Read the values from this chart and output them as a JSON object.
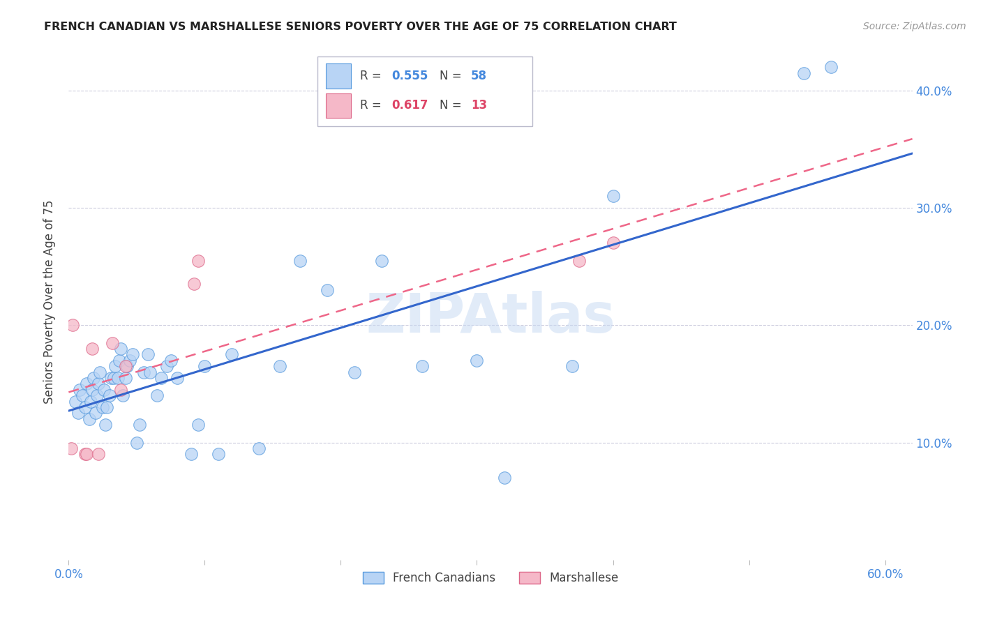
{
  "title": "FRENCH CANADIAN VS MARSHALLESE SENIORS POVERTY OVER THE AGE OF 75 CORRELATION CHART",
  "source": "Source: ZipAtlas.com",
  "ylabel": "Seniors Poverty Over the Age of 75",
  "xlim": [
    0.0,
    0.62
  ],
  "ylim": [
    0.0,
    0.44
  ],
  "xticks": [
    0.0,
    0.1,
    0.2,
    0.3,
    0.4,
    0.5,
    0.6
  ],
  "xticklabels": [
    "0.0%",
    "",
    "",
    "",
    "",
    "",
    "60.0%"
  ],
  "yticks": [
    0.1,
    0.2,
    0.3,
    0.4
  ],
  "yticklabels": [
    "10.0%",
    "20.0%",
    "30.0%",
    "40.0%"
  ],
  "blue_r": "0.555",
  "blue_n": "58",
  "pink_r": "0.617",
  "pink_n": "13",
  "blue_fill": "#b8d4f5",
  "pink_fill": "#f5b8c8",
  "blue_edge": "#5599dd",
  "pink_edge": "#dd6688",
  "line_blue_color": "#3366cc",
  "line_pink_color": "#ee6688",
  "watermark": "ZIPAtlas",
  "french_canadians_x": [
    0.005,
    0.007,
    0.008,
    0.01,
    0.012,
    0.013,
    0.015,
    0.016,
    0.017,
    0.018,
    0.02,
    0.021,
    0.022,
    0.023,
    0.025,
    0.026,
    0.027,
    0.028,
    0.03,
    0.031,
    0.033,
    0.034,
    0.036,
    0.037,
    0.038,
    0.04,
    0.042,
    0.043,
    0.045,
    0.047,
    0.05,
    0.052,
    0.055,
    0.058,
    0.06,
    0.065,
    0.068,
    0.072,
    0.075,
    0.08,
    0.09,
    0.095,
    0.1,
    0.11,
    0.12,
    0.14,
    0.155,
    0.17,
    0.19,
    0.21,
    0.23,
    0.26,
    0.3,
    0.32,
    0.37,
    0.4,
    0.54,
    0.56
  ],
  "french_canadians_y": [
    0.135,
    0.125,
    0.145,
    0.14,
    0.13,
    0.15,
    0.12,
    0.135,
    0.145,
    0.155,
    0.125,
    0.14,
    0.15,
    0.16,
    0.13,
    0.145,
    0.115,
    0.13,
    0.14,
    0.155,
    0.155,
    0.165,
    0.155,
    0.17,
    0.18,
    0.14,
    0.155,
    0.165,
    0.17,
    0.175,
    0.1,
    0.115,
    0.16,
    0.175,
    0.16,
    0.14,
    0.155,
    0.165,
    0.17,
    0.155,
    0.09,
    0.115,
    0.165,
    0.09,
    0.175,
    0.095,
    0.165,
    0.255,
    0.23,
    0.16,
    0.255,
    0.165,
    0.17,
    0.07,
    0.165,
    0.31,
    0.415,
    0.42
  ],
  "marshallese_x": [
    0.002,
    0.003,
    0.012,
    0.013,
    0.017,
    0.022,
    0.032,
    0.038,
    0.042,
    0.092,
    0.095,
    0.375,
    0.4
  ],
  "marshallese_y": [
    0.095,
    0.2,
    0.09,
    0.09,
    0.18,
    0.09,
    0.185,
    0.145,
    0.165,
    0.235,
    0.255,
    0.255,
    0.27
  ]
}
